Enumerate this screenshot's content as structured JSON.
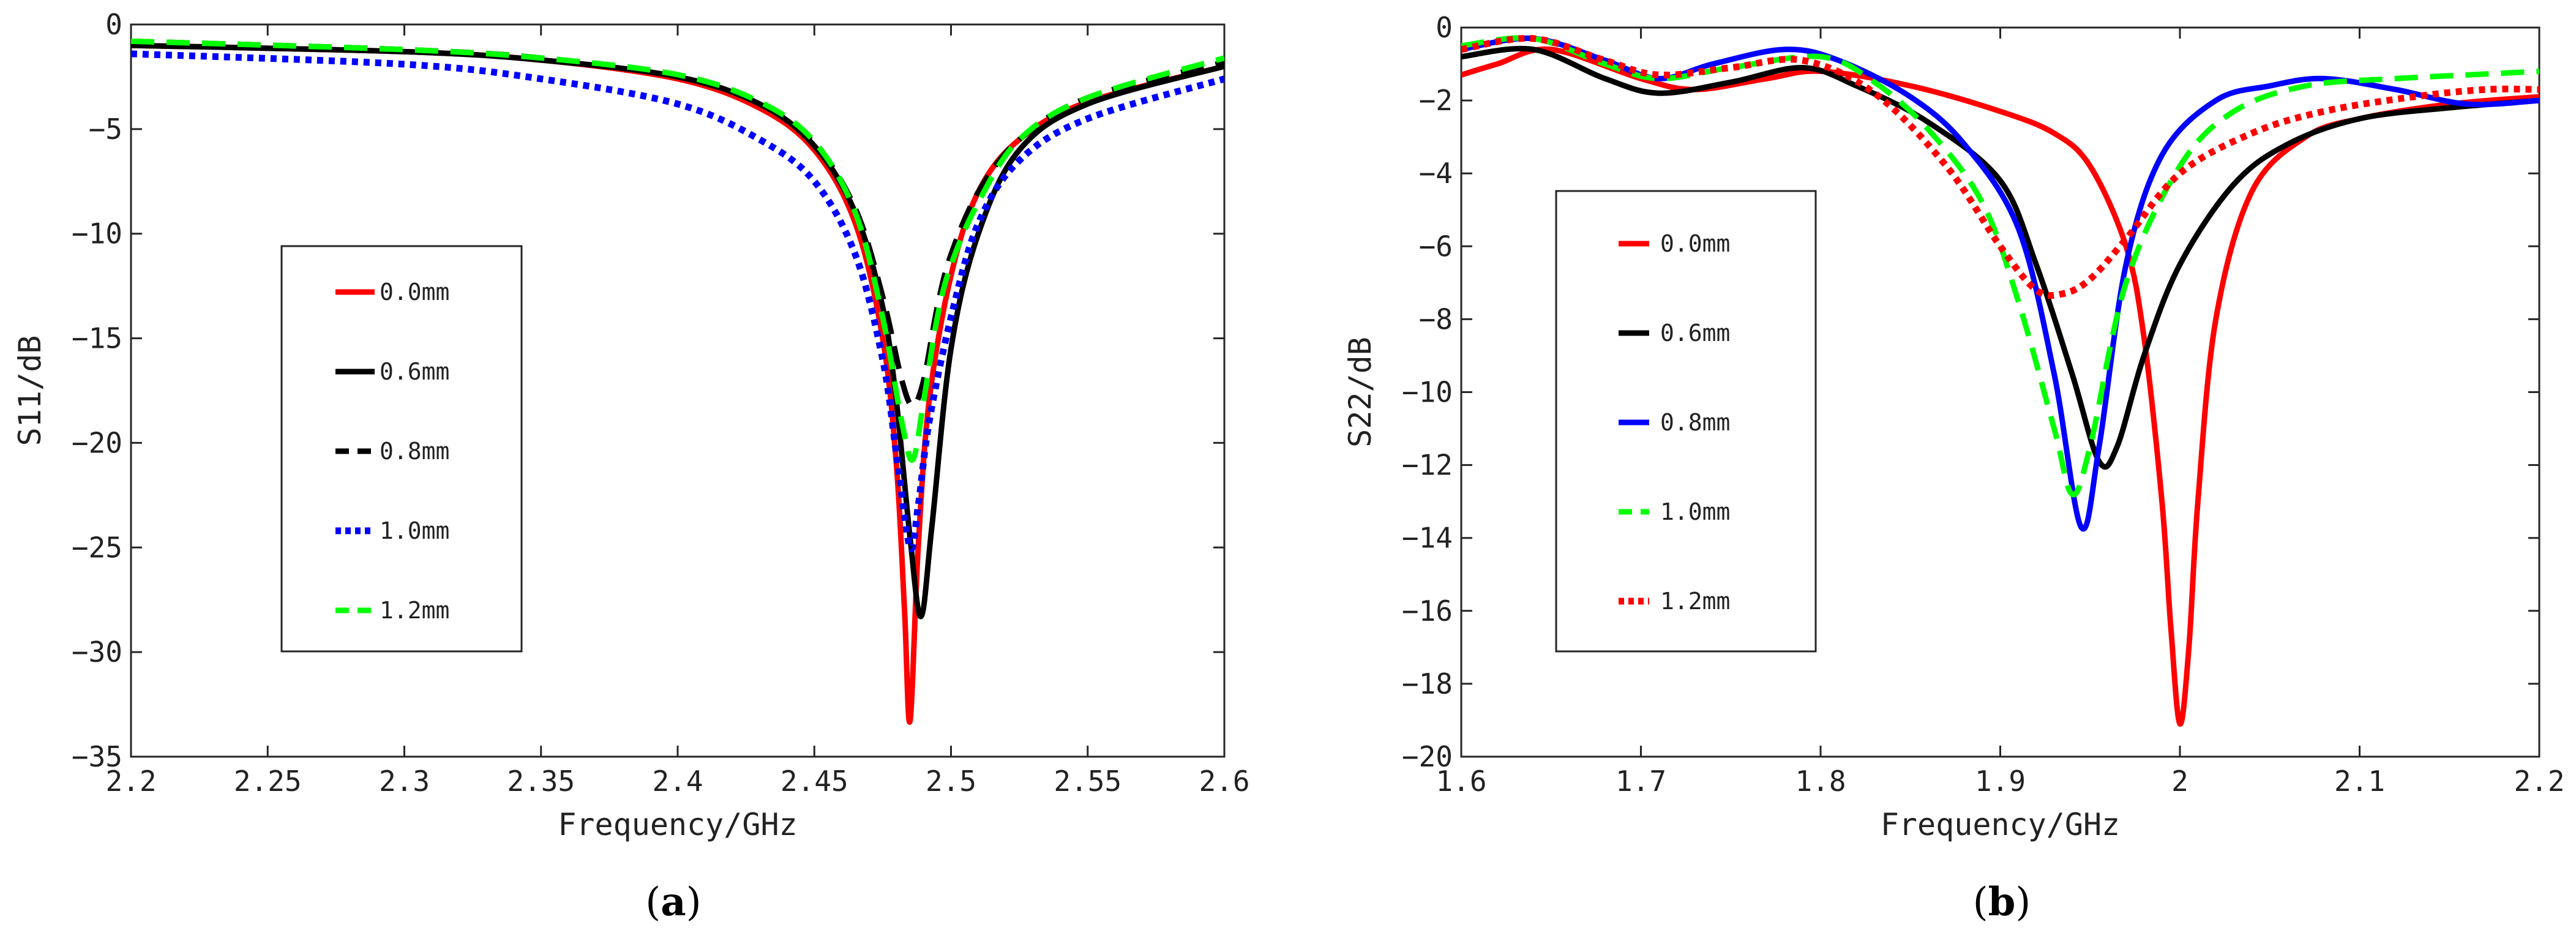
{
  "chart_data": [
    {
      "type": "line",
      "panel": "(a)",
      "caption_letter": "a",
      "xlabel": "Frequency/GHz",
      "ylabel": "S11/dB",
      "xlim": [
        2.2,
        2.6
      ],
      "ylim": [
        -35,
        0
      ],
      "xticks": [
        "2.2",
        "2.25",
        "2.3",
        "2.35",
        "2.4",
        "2.45",
        "2.5",
        "2.55",
        "2.6"
      ],
      "xtick_values": [
        2.2,
        2.25,
        2.3,
        2.35,
        2.4,
        2.45,
        2.5,
        2.55,
        2.6
      ],
      "yticks": [
        "0",
        "−5",
        "−10",
        "−15",
        "−20",
        "−25",
        "−30",
        "−35"
      ],
      "ytick_values": [
        0,
        -5,
        -10,
        -15,
        -20,
        -25,
        -30,
        -35
      ],
      "legend_position": "center-left",
      "series": [
        {
          "name": "0.0mm",
          "color": "#ff0000",
          "style": "solid",
          "x": [
            2.2,
            2.3,
            2.35,
            2.4,
            2.43,
            2.45,
            2.465,
            2.475,
            2.48,
            2.483,
            2.485,
            2.488,
            2.492,
            2.5,
            2.51,
            2.525,
            2.55,
            2.6
          ],
          "y": [
            -1.0,
            -1.3,
            -1.7,
            -2.6,
            -4.0,
            -6.0,
            -9.5,
            -15.0,
            -21.0,
            -28.0,
            -33.3,
            -25.0,
            -18.0,
            -12.0,
            -8.0,
            -5.5,
            -3.7,
            -2.0
          ]
        },
        {
          "name": "0.6mm",
          "color": "#000000",
          "style": "solid",
          "x": [
            2.2,
            2.3,
            2.35,
            2.4,
            2.43,
            2.45,
            2.465,
            2.475,
            2.48,
            2.485,
            2.489,
            2.493,
            2.5,
            2.51,
            2.525,
            2.55,
            2.6
          ],
          "y": [
            -1.0,
            -1.3,
            -1.7,
            -2.5,
            -3.8,
            -5.8,
            -9.0,
            -13.5,
            -18.0,
            -24.5,
            -28.3,
            -24.0,
            -15.5,
            -10.0,
            -6.0,
            -3.8,
            -2.0
          ]
        },
        {
          "name": "0.8mm",
          "color": "#000000",
          "style": "dashed",
          "x": [
            2.2,
            2.3,
            2.35,
            2.4,
            2.43,
            2.45,
            2.465,
            2.475,
            2.482,
            2.486,
            2.49,
            2.495,
            2.5,
            2.51,
            2.525,
            2.55,
            2.6
          ],
          "y": [
            -0.8,
            -1.2,
            -1.6,
            -2.5,
            -3.8,
            -5.7,
            -8.8,
            -13.0,
            -17.0,
            -18.2,
            -17.0,
            -13.5,
            -11.0,
            -8.0,
            -5.5,
            -3.5,
            -1.8
          ]
        },
        {
          "name": "1.0mm",
          "color": "#0000ff",
          "style": "dotted",
          "x": [
            2.2,
            2.3,
            2.35,
            2.4,
            2.43,
            2.45,
            2.465,
            2.475,
            2.48,
            2.485,
            2.488,
            2.492,
            2.5,
            2.51,
            2.525,
            2.55,
            2.6
          ],
          "y": [
            -1.4,
            -1.9,
            -2.6,
            -3.8,
            -5.5,
            -7.5,
            -11.0,
            -16.0,
            -20.5,
            -25.0,
            -23.0,
            -19.0,
            -14.0,
            -9.5,
            -6.5,
            -4.5,
            -2.6
          ]
        },
        {
          "name": "1.2mm",
          "color": "#00ff00",
          "style": "dashed",
          "x": [
            2.2,
            2.3,
            2.35,
            2.4,
            2.43,
            2.45,
            2.465,
            2.475,
            2.482,
            2.486,
            2.49,
            2.495,
            2.5,
            2.51,
            2.525,
            2.55,
            2.6
          ],
          "y": [
            -0.8,
            -1.2,
            -1.6,
            -2.4,
            -3.7,
            -5.6,
            -9.0,
            -14.0,
            -19.0,
            -20.8,
            -18.0,
            -14.0,
            -11.5,
            -8.5,
            -5.5,
            -3.5,
            -1.6
          ]
        }
      ]
    },
    {
      "type": "line",
      "panel": "(b)",
      "caption_letter": "b",
      "xlabel": "Frequency/GHz",
      "ylabel": "S22/dB",
      "xlim": [
        1.6,
        2.2
      ],
      "ylim": [
        -20,
        0
      ],
      "xticks": [
        "1.6",
        "1.7",
        "1.8",
        "1.9",
        "2",
        "2.1",
        "2.2"
      ],
      "xtick_values": [
        1.6,
        1.7,
        1.8,
        1.9,
        2.0,
        2.1,
        2.2
      ],
      "yticks": [
        "0",
        "−2",
        "−4",
        "−6",
        "−8",
        "−10",
        "−12",
        "−14",
        "−16",
        "−18",
        "−20"
      ],
      "ytick_values": [
        0,
        -2,
        -4,
        -6,
        -8,
        -10,
        -12,
        -14,
        -16,
        -18,
        -20
      ],
      "legend_position": "center-left",
      "series": [
        {
          "name": "0.0mm",
          "color": "#ff0000",
          "style": "solid",
          "x": [
            1.6,
            1.62,
            1.65,
            1.7,
            1.73,
            1.77,
            1.8,
            1.85,
            1.9,
            1.93,
            1.95,
            1.97,
            1.98,
            1.99,
            1.995,
            2.0,
            2.005,
            2.01,
            2.02,
            2.04,
            2.07,
            2.1,
            2.15,
            2.2
          ],
          "y": [
            -1.3,
            -1.0,
            -0.6,
            -1.4,
            -1.7,
            -1.4,
            -1.2,
            -1.6,
            -2.3,
            -2.9,
            -3.8,
            -6.0,
            -8.5,
            -13.0,
            -16.5,
            -19.1,
            -17.0,
            -13.0,
            -8.0,
            -4.5,
            -3.0,
            -2.5,
            -2.1,
            -1.9
          ]
        },
        {
          "name": "0.6mm",
          "color": "#000000",
          "style": "solid",
          "x": [
            1.6,
            1.64,
            1.68,
            1.71,
            1.75,
            1.79,
            1.82,
            1.86,
            1.9,
            1.92,
            1.94,
            1.955,
            1.965,
            1.98,
            2.0,
            2.03,
            2.06,
            2.1,
            2.15,
            2.2
          ],
          "y": [
            -0.8,
            -0.6,
            -1.4,
            -1.8,
            -1.5,
            -1.1,
            -1.6,
            -2.6,
            -4.2,
            -6.5,
            -9.5,
            -11.9,
            -11.5,
            -9.0,
            -6.5,
            -4.3,
            -3.2,
            -2.5,
            -2.2,
            -2.0
          ]
        },
        {
          "name": "0.8mm",
          "color": "#0000ff",
          "style": "solid",
          "x": [
            1.6,
            1.64,
            1.68,
            1.71,
            1.74,
            1.78,
            1.81,
            1.85,
            1.88,
            1.91,
            1.93,
            1.945,
            1.955,
            1.97,
            1.99,
            2.02,
            2.05,
            2.08,
            2.12,
            2.16,
            2.2
          ],
          "y": [
            -0.6,
            -0.3,
            -0.9,
            -1.4,
            -1.0,
            -0.6,
            -0.9,
            -1.9,
            -3.2,
            -5.5,
            -9.5,
            -13.7,
            -11.5,
            -6.5,
            -3.5,
            -2.0,
            -1.6,
            -1.4,
            -1.7,
            -2.1,
            -2.0
          ]
        },
        {
          "name": "1.0mm",
          "color": "#00ff00",
          "style": "dashed",
          "x": [
            1.6,
            1.64,
            1.68,
            1.71,
            1.75,
            1.8,
            1.83,
            1.86,
            1.89,
            1.91,
            1.93,
            1.94,
            1.95,
            1.97,
            2.0,
            2.03,
            2.07,
            2.12,
            2.16,
            2.2
          ],
          "y": [
            -0.5,
            -0.3,
            -1.0,
            -1.4,
            -1.1,
            -0.8,
            -1.5,
            -2.8,
            -4.8,
            -7.5,
            -11.0,
            -12.8,
            -11.5,
            -7.0,
            -3.8,
            -2.3,
            -1.6,
            -1.4,
            -1.3,
            -1.2
          ]
        },
        {
          "name": "1.2mm",
          "color": "#ff0000",
          "style": "dotted",
          "x": [
            1.6,
            1.64,
            1.68,
            1.71,
            1.75,
            1.79,
            1.83,
            1.87,
            1.9,
            1.92,
            1.935,
            1.95,
            1.97,
            2.0,
            2.04,
            2.08,
            2.13,
            2.17,
            2.2
          ],
          "y": [
            -0.6,
            -0.3,
            -0.9,
            -1.3,
            -1.1,
            -0.9,
            -1.8,
            -3.8,
            -6.0,
            -7.2,
            -7.3,
            -6.9,
            -5.8,
            -4.0,
            -2.9,
            -2.3,
            -1.9,
            -1.7,
            -1.7
          ]
        }
      ]
    }
  ]
}
